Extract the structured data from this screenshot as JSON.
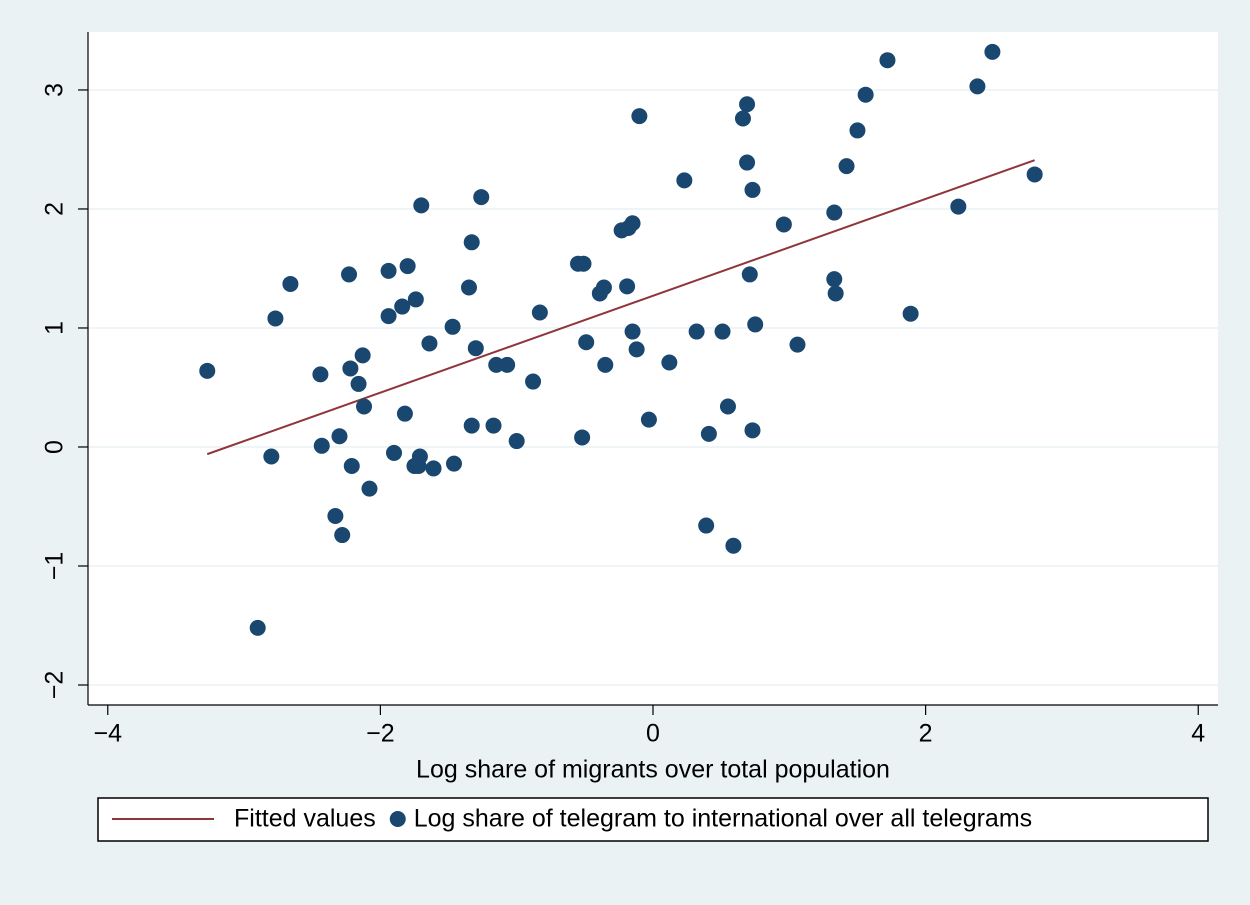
{
  "chart_data": {
    "type": "scatter",
    "x_label": "Log share of migrants over total population",
    "xlim": [
      -4.145,
      4.145
    ],
    "ylim": [
      -2.168,
      3.487
    ],
    "xticks": [
      {
        "value": -4,
        "label": "−4"
      },
      {
        "value": -2,
        "label": "−2"
      },
      0,
      2,
      4
    ],
    "yticks": [
      {
        "value": -2,
        "label": "−2"
      },
      {
        "value": -1,
        "label": "−1"
      },
      0,
      1,
      2,
      3
    ],
    "grid": true,
    "legend": "bottom",
    "series": [
      {
        "name": "Fitted values",
        "type": "line",
        "color": "#90353b",
        "x": [
          -3.27,
          2.8
        ],
        "values": [
          -0.06,
          2.41
        ]
      },
      {
        "name": "Log share of telegram to international over all telegrams",
        "type": "scatter",
        "color": "#1a476f",
        "x": [
          -3.27,
          -2.9,
          -2.8,
          -2.77,
          -2.66,
          -2.44,
          -2.43,
          -2.33,
          -2.3,
          -2.28,
          -2.23,
          -2.22,
          -2.21,
          -2.16,
          -2.13,
          -2.12,
          -2.08,
          -1.94,
          -1.94,
          -1.9,
          -1.84,
          -1.82,
          -1.8,
          -1.75,
          -1.74,
          -1.72,
          -1.71,
          -1.7,
          -1.64,
          -1.61,
          -1.47,
          -1.46,
          -1.35,
          -1.33,
          -1.33,
          -1.3,
          -1.26,
          -1.17,
          -1.15,
          -1.07,
          -1.0,
          -0.88,
          -0.83,
          -0.55,
          -0.51,
          -0.52,
          -0.49,
          -0.39,
          -0.36,
          -0.35,
          -0.23,
          -0.18,
          -0.19,
          -0.15,
          -0.15,
          -0.12,
          -0.1,
          -0.03,
          0.12,
          0.23,
          0.32,
          0.39,
          0.41,
          0.51,
          0.55,
          0.59,
          0.66,
          0.69,
          0.69,
          0.71,
          0.73,
          0.73,
          0.75,
          0.96,
          1.06,
          1.33,
          1.33,
          1.34,
          1.42,
          1.5,
          1.56,
          1.72,
          1.89,
          2.24,
          2.38,
          2.49,
          2.8
        ],
        "values": [
          0.64,
          -1.52,
          -0.08,
          1.08,
          1.37,
          0.61,
          0.01,
          -0.58,
          0.09,
          -0.74,
          1.45,
          0.66,
          -0.16,
          0.53,
          0.77,
          0.34,
          -0.35,
          1.1,
          1.48,
          -0.05,
          1.18,
          0.28,
          1.52,
          -0.16,
          1.24,
          -0.16,
          -0.08,
          2.03,
          0.87,
          -0.18,
          1.01,
          -0.14,
          1.34,
          1.72,
          0.18,
          0.83,
          2.1,
          0.18,
          0.69,
          0.69,
          0.05,
          0.55,
          1.13,
          1.54,
          1.54,
          0.08,
          0.88,
          1.29,
          1.34,
          0.69,
          1.82,
          1.84,
          1.35,
          1.88,
          0.97,
          0.82,
          2.78,
          0.23,
          0.71,
          2.24,
          0.97,
          -0.66,
          0.11,
          0.97,
          0.34,
          -0.83,
          2.76,
          2.88,
          2.39,
          1.45,
          2.16,
          0.14,
          1.03,
          1.87,
          0.86,
          1.97,
          1.41,
          1.29,
          2.36,
          2.66,
          2.96,
          3.25,
          1.12,
          2.02,
          3.03,
          3.32,
          2.29
        ]
      }
    ]
  }
}
